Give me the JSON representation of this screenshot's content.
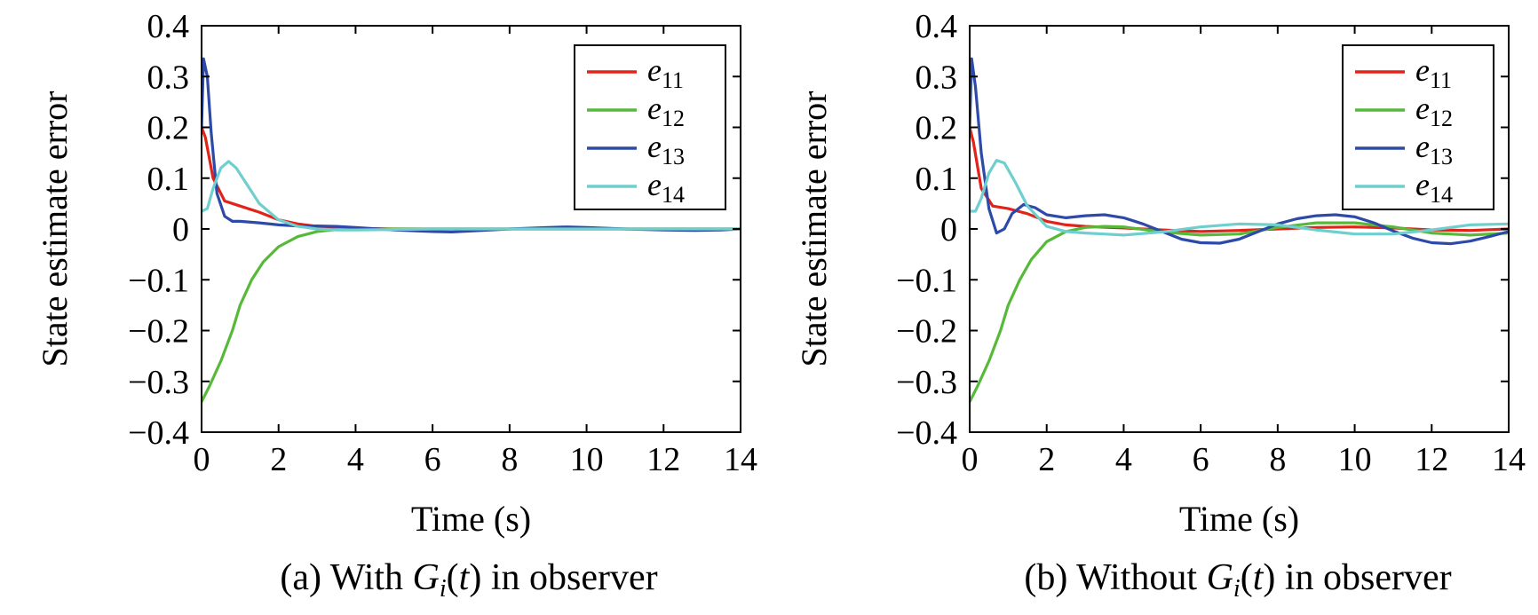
{
  "chart_data": [
    {
      "type": "line",
      "title": "",
      "caption_prefix": "(a) With ",
      "caption_var": "G",
      "caption_sub": "i",
      "caption_arg": "(",
      "caption_argvar": "t",
      "caption_suffix": ") in observer",
      "xlabel": "Time (s)",
      "ylabel": "State estimate error",
      "xlim": [
        0,
        14
      ],
      "ylim": [
        -0.4,
        0.4
      ],
      "xticks": [
        0,
        2,
        4,
        6,
        8,
        10,
        12,
        14
      ],
      "yticks": [
        0.4,
        0.3,
        0.2,
        0.1,
        0,
        -0.1,
        -0.2,
        -0.3,
        -0.4
      ],
      "ytick_labels": [
        "0.4",
        "0.3",
        "0.2",
        "0.1",
        "0",
        "−0.1",
        "−0.2",
        "−0.3",
        "−0.4"
      ],
      "legend_position": "top-right",
      "series": [
        {
          "name": "e",
          "sub": "11",
          "color": "#e2231a",
          "x": [
            0,
            0.1,
            0.3,
            0.6,
            1.0,
            1.5,
            2.0,
            2.5,
            3.0,
            3.5,
            4,
            5,
            6,
            7,
            8,
            9,
            10,
            11,
            12,
            13,
            14
          ],
          "y": [
            0.2,
            0.18,
            0.1,
            0.055,
            0.045,
            0.033,
            0.018,
            0.01,
            0.005,
            0.002,
            0.001,
            0,
            0,
            0,
            0,
            0,
            0,
            0,
            0,
            0,
            0
          ]
        },
        {
          "name": "e",
          "sub": "12",
          "color": "#56b93a",
          "x": [
            0,
            0.2,
            0.5,
            0.8,
            1.0,
            1.3,
            1.6,
            2.0,
            2.5,
            3.0,
            3.5,
            4,
            5,
            6,
            7,
            8,
            9,
            10,
            11,
            12,
            13,
            14
          ],
          "y": [
            -0.34,
            -0.31,
            -0.26,
            -0.2,
            -0.15,
            -0.1,
            -0.065,
            -0.035,
            -0.015,
            -0.005,
            -0.001,
            0,
            0,
            0,
            0,
            0,
            0,
            0,
            0,
            0,
            0,
            0
          ]
        },
        {
          "name": "e",
          "sub": "13",
          "color": "#2e4aa8",
          "x": [
            0,
            0.05,
            0.15,
            0.25,
            0.4,
            0.6,
            0.8,
            1.0,
            1.5,
            2.0,
            2.5,
            3.0,
            3.5,
            4,
            5,
            6,
            6.5,
            7,
            8,
            9,
            9.5,
            10,
            11,
            12,
            12.8,
            13.5,
            14
          ],
          "y": [
            0.2,
            0.335,
            0.3,
            0.19,
            0.07,
            0.025,
            0.015,
            0.015,
            0.012,
            0.008,
            0.006,
            0.006,
            0.005,
            0.003,
            -0.002,
            -0.005,
            -0.006,
            -0.004,
            0,
            0.003,
            0.004,
            0.003,
            0,
            -0.002,
            -0.003,
            -0.002,
            0
          ]
        },
        {
          "name": "e",
          "sub": "14",
          "color": "#6fcfcf",
          "x": [
            0,
            0.15,
            0.3,
            0.5,
            0.7,
            0.9,
            1.2,
            1.5,
            2.0,
            2.5,
            3.0,
            3.5,
            4,
            5,
            6,
            7,
            8,
            9,
            10,
            11,
            12,
            13,
            14
          ],
          "y": [
            0.035,
            0.04,
            0.08,
            0.12,
            0.133,
            0.12,
            0.085,
            0.05,
            0.018,
            0.005,
            0.0,
            -0.002,
            -0.002,
            -0.001,
            0,
            0,
            0,
            0,
            0,
            0,
            0,
            0,
            0
          ]
        }
      ]
    },
    {
      "type": "line",
      "title": "",
      "caption_prefix": "(b) Without ",
      "caption_var": "G",
      "caption_sub": "i",
      "caption_arg": "(",
      "caption_argvar": "t",
      "caption_suffix": ") in observer",
      "xlabel": "Time (s)",
      "ylabel": "State estimate error",
      "xlim": [
        0,
        14
      ],
      "ylim": [
        -0.4,
        0.4
      ],
      "xticks": [
        0,
        2,
        4,
        6,
        8,
        10,
        12,
        14
      ],
      "yticks": [
        0.4,
        0.3,
        0.2,
        0.1,
        0,
        -0.1,
        -0.2,
        -0.3,
        -0.4
      ],
      "ytick_labels": [
        "0.4",
        "0.3",
        "0.2",
        "0.1",
        "0",
        "−0.1",
        "−0.2",
        "−0.3",
        "−0.4"
      ],
      "legend_position": "top-right",
      "series": [
        {
          "name": "e",
          "sub": "11",
          "color": "#e2231a",
          "x": [
            0,
            0.1,
            0.3,
            0.6,
            1.0,
            1.5,
            2.0,
            2.5,
            3.0,
            4,
            5,
            6,
            7,
            8,
            9,
            10,
            11,
            12,
            13,
            14
          ],
          "y": [
            0.2,
            0.17,
            0.08,
            0.045,
            0.04,
            0.03,
            0.015,
            0.008,
            0.005,
            0.002,
            -0.002,
            -0.005,
            -0.003,
            0,
            0.003,
            0.004,
            0.002,
            -0.002,
            -0.003,
            0
          ]
        },
        {
          "name": "e",
          "sub": "12",
          "color": "#56b93a",
          "x": [
            0,
            0.2,
            0.5,
            0.8,
            1.0,
            1.3,
            1.6,
            2.0,
            2.5,
            3.0,
            3.5,
            4,
            5,
            6,
            7,
            8,
            9,
            10,
            11,
            12,
            13,
            14
          ],
          "y": [
            -0.34,
            -0.31,
            -0.26,
            -0.2,
            -0.15,
            -0.1,
            -0.06,
            -0.025,
            -0.005,
            0.003,
            0.005,
            0.004,
            -0.006,
            -0.012,
            -0.01,
            0.003,
            0.012,
            0.012,
            0.004,
            -0.008,
            -0.012,
            -0.008
          ]
        },
        {
          "name": "e",
          "sub": "13",
          "color": "#2e4aa8",
          "x": [
            0,
            0.05,
            0.15,
            0.3,
            0.5,
            0.7,
            0.9,
            1.1,
            1.4,
            1.7,
            2.0,
            2.5,
            3.0,
            3.5,
            4.0,
            4.5,
            5,
            5.5,
            6,
            6.5,
            7,
            7.5,
            8,
            8.5,
            9,
            9.5,
            10,
            10.5,
            11,
            11.5,
            12,
            12.5,
            13,
            13.5,
            14
          ],
          "y": [
            0.2,
            0.335,
            0.28,
            0.15,
            0.04,
            -0.008,
            0.0,
            0.03,
            0.048,
            0.042,
            0.028,
            0.022,
            0.026,
            0.028,
            0.022,
            0.01,
            -0.005,
            -0.02,
            -0.027,
            -0.028,
            -0.02,
            -0.005,
            0.01,
            0.02,
            0.026,
            0.028,
            0.024,
            0.012,
            -0.004,
            -0.018,
            -0.027,
            -0.029,
            -0.024,
            -0.015,
            -0.005
          ]
        },
        {
          "name": "e",
          "sub": "14",
          "color": "#6fcfcf",
          "x": [
            0,
            0.15,
            0.3,
            0.5,
            0.7,
            0.9,
            1.2,
            1.5,
            2.0,
            2.5,
            3.0,
            3.5,
            4,
            5,
            6,
            7,
            8,
            9,
            10,
            11,
            12,
            13,
            14
          ],
          "y": [
            0.035,
            0.035,
            0.06,
            0.11,
            0.135,
            0.13,
            0.09,
            0.045,
            0.005,
            -0.005,
            -0.008,
            -0.01,
            -0.012,
            -0.006,
            0.004,
            0.01,
            0.008,
            -0.002,
            -0.01,
            -0.01,
            -0.002,
            0.008,
            0.01
          ]
        }
      ]
    }
  ]
}
